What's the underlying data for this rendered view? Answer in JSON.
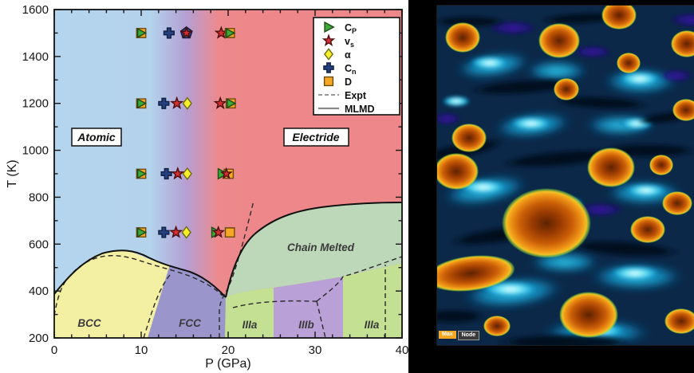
{
  "figure": {
    "right_panel": {
      "description_name": "electride-electron-density-render",
      "chips": [
        {
          "label": "Max",
          "color": "#f5a623"
        },
        {
          "label": "Node",
          "color": "#3a3a3a"
        }
      ]
    }
  },
  "chart_data": {
    "type": "scatter",
    "title": "",
    "xlabel": "P (GPa)",
    "ylabel": "T (K)",
    "xlim": [
      0,
      40
    ],
    "ylim": [
      200,
      1600
    ],
    "x_major_ticks": [
      0,
      10,
      20,
      30,
      40
    ],
    "x_minor_step": 2,
    "y_major_ticks": [
      200,
      400,
      600,
      800,
      1000,
      1200,
      1400,
      1600
    ],
    "y_minor_step": 100,
    "grid": false,
    "legend_position": "upper right",
    "legend": {
      "items": [
        {
          "marker": "CP",
          "main": "C",
          "sub": "P"
        },
        {
          "marker": "vs",
          "main": "v",
          "sub": "s"
        },
        {
          "marker": "al",
          "main": "α",
          "sub": ""
        },
        {
          "marker": "Cn",
          "main": "C",
          "sub": "n"
        },
        {
          "marker": "D",
          "main": "D",
          "sub": ""
        },
        {
          "line": "dashed",
          "label": "Expt"
        },
        {
          "line": "solid",
          "label": "MLMD"
        }
      ]
    },
    "marker_styles": {
      "CP": {
        "shape": "triangle-right",
        "fill": "#3daa35",
        "stroke": "#1c4b17"
      },
      "vs": {
        "shape": "star",
        "fill": "#d62f2f",
        "stroke": "#4a0d10"
      },
      "al": {
        "shape": "diamond",
        "fill": "#f8ef2b",
        "stroke": "#6d6a12"
      },
      "Cn": {
        "shape": "cross",
        "fill": "#24407f",
        "stroke": "#101f43"
      },
      "D": {
        "shape": "square",
        "fill": "#f5a623",
        "stroke": "#6e4a0d"
      },
      "pent": {
        "shape": "pentagon",
        "fill": "#37406e",
        "stroke": "#141c3c"
      }
    },
    "regions": [
      {
        "label": "Atomic",
        "boxed": true,
        "color": "#b5d4ed",
        "label_pos": {
          "P": 4.9,
          "T": 1050
        }
      },
      {
        "label": "Electride",
        "boxed": true,
        "color": "#ee878a",
        "label_pos": {
          "P": 30.1,
          "T": 1050
        }
      },
      {
        "label": "Chain Melted",
        "boxed": false,
        "color": "#bdd8b8",
        "label_pos": {
          "P": 30.6,
          "T": 590
        }
      },
      {
        "label": "BCC",
        "boxed": false,
        "color": "#f3efa3",
        "label_pos": {
          "P": 4.0,
          "T": 265
        }
      },
      {
        "label": "FCC",
        "boxed": false,
        "color": "#9a96cc",
        "label_pos": {
          "P": 15.6,
          "T": 265
        }
      },
      {
        "label": "IIIa",
        "boxed": false,
        "color": "#c3e093",
        "label_pos": {
          "P": 22.4,
          "T": 252
        }
      },
      {
        "label": "IIIb",
        "boxed": false,
        "color": "#b9a0d6",
        "label_pos": {
          "P": 29.0,
          "T": 252
        }
      },
      {
        "label": "IIIa",
        "boxed": false,
        "color": "#c3e093",
        "label_pos": {
          "P": 36.4,
          "T": 252
        }
      }
    ],
    "curves": {
      "solid_label": "MLMD melting / phase boundary",
      "dashed_label": "Expt boundaries"
    },
    "points": [
      {
        "T": 1500,
        "items": [
          {
            "P": 10.0,
            "markers": [
              {
                "t": "D"
              },
              {
                "t": "CP",
                "s": 0.85
              }
            ]
          },
          {
            "P": 13.2,
            "markers": [
              {
                "t": "Cn"
              }
            ]
          },
          {
            "P": 15.2,
            "markers": [
              {
                "t": "pent"
              },
              {
                "t": "vs",
                "s": 0.92
              }
            ]
          },
          {
            "P": 19.2,
            "markers": [
              {
                "t": "vs"
              }
            ]
          },
          {
            "P": 20.2,
            "markers": [
              {
                "t": "D"
              },
              {
                "t": "CP",
                "s": 0.85
              }
            ]
          }
        ]
      },
      {
        "T": 1200,
        "items": [
          {
            "P": 10.0,
            "markers": [
              {
                "t": "D"
              },
              {
                "t": "CP",
                "s": 0.85
              }
            ]
          },
          {
            "P": 12.6,
            "markers": [
              {
                "t": "Cn"
              }
            ]
          },
          {
            "P": 14.1,
            "markers": [
              {
                "t": "vs"
              }
            ]
          },
          {
            "P": 15.3,
            "markers": [
              {
                "t": "al"
              }
            ]
          },
          {
            "P": 19.1,
            "markers": [
              {
                "t": "vs"
              }
            ]
          },
          {
            "P": 20.3,
            "markers": [
              {
                "t": "D"
              },
              {
                "t": "CP",
                "s": 0.85
              }
            ]
          }
        ]
      },
      {
        "T": 900,
        "items": [
          {
            "P": 10.0,
            "markers": [
              {
                "t": "D"
              },
              {
                "t": "CP",
                "s": 0.85
              }
            ]
          },
          {
            "P": 12.9,
            "markers": [
              {
                "t": "Cn"
              }
            ]
          },
          {
            "P": 14.2,
            "markers": [
              {
                "t": "vs"
              }
            ]
          },
          {
            "P": 15.3,
            "markers": [
              {
                "t": "al"
              }
            ]
          },
          {
            "P": 19.7,
            "markers": [
              {
                "t": "D",
                "dx": 4
              },
              {
                "t": "CP",
                "dx": -4
              },
              {
                "t": "vs",
                "dx": 1,
                "s": 0.9
              }
            ]
          }
        ]
      },
      {
        "T": 650,
        "items": [
          {
            "P": 10.0,
            "markers": [
              {
                "t": "D"
              },
              {
                "t": "CP",
                "s": 0.85
              }
            ]
          },
          {
            "P": 12.6,
            "markers": [
              {
                "t": "Cn"
              }
            ]
          },
          {
            "P": 14.0,
            "markers": [
              {
                "t": "vs"
              }
            ]
          },
          {
            "P": 15.2,
            "markers": [
              {
                "t": "al"
              }
            ]
          },
          {
            "P": 18.6,
            "markers": [
              {
                "t": "CP"
              },
              {
                "t": "vs",
                "dx": 3,
                "s": 0.95
              }
            ]
          },
          {
            "P": 20.2,
            "markers": [
              {
                "t": "D"
              }
            ]
          }
        ]
      }
    ]
  }
}
